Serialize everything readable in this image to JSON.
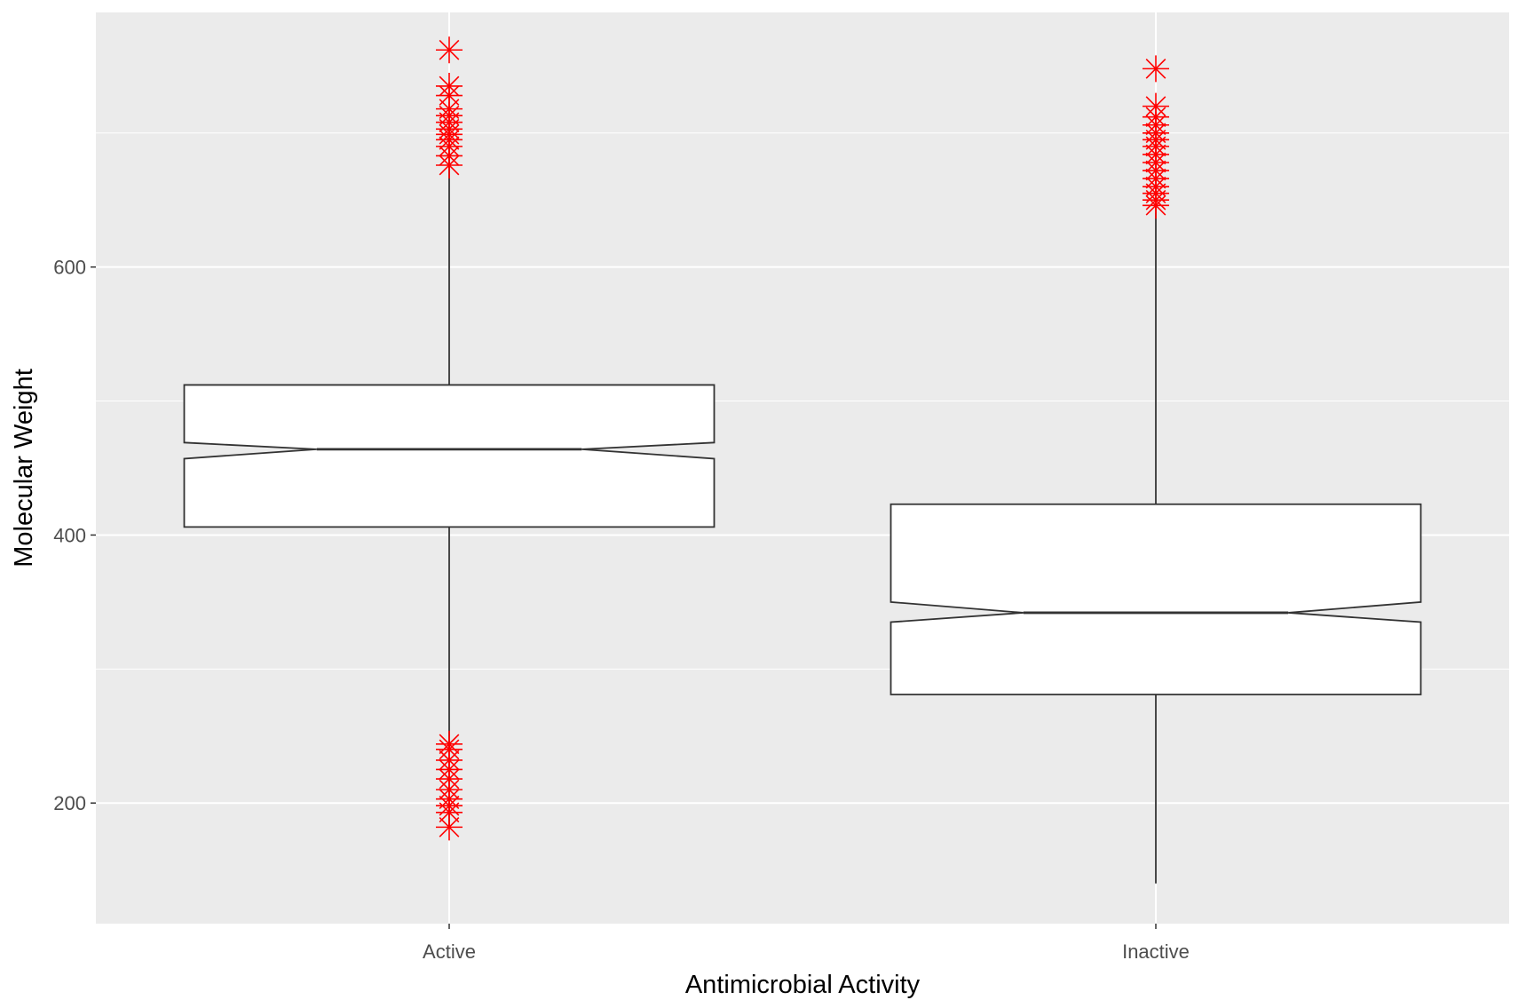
{
  "chart_data": {
    "type": "boxplot",
    "notched": true,
    "xlabel": "Antimicrobial Activity",
    "ylabel": "Molecular Weight",
    "ylim": [
      110,
      790
    ],
    "yticks": [
      200,
      400,
      600
    ],
    "grid": true,
    "colors": {
      "panel": "#ebebeb",
      "grid": "#ffffff",
      "box_fill": "#ffffff",
      "box_line": "#333333",
      "outlier": "#ff0000",
      "tick_label": "#4d4d4d",
      "axis_title": "#000000"
    },
    "outlier_shape": "asterisk",
    "categories": [
      "Active",
      "Inactive"
    ],
    "boxes": [
      {
        "category": "Active",
        "whisker_low": 182,
        "q1": 406,
        "notch_low": 457,
        "median": 464,
        "notch_high": 469,
        "q3": 512,
        "whisker_high": 690,
        "outliers": [
          182,
          193,
          198,
          203,
          210,
          218,
          225,
          232,
          240,
          244,
          676,
          683,
          690,
          695,
          699,
          703,
          708,
          713,
          718,
          728,
          735,
          762
        ]
      },
      {
        "category": "Inactive",
        "whisker_low": 140,
        "q1": 281,
        "notch_low": 335,
        "median": 342,
        "notch_high": 350,
        "q3": 423,
        "whisker_high": 646,
        "outliers": [
          646,
          650,
          655,
          660,
          666,
          672,
          678,
          684,
          690,
          695,
          700,
          706,
          712,
          720,
          748
        ]
      }
    ]
  }
}
